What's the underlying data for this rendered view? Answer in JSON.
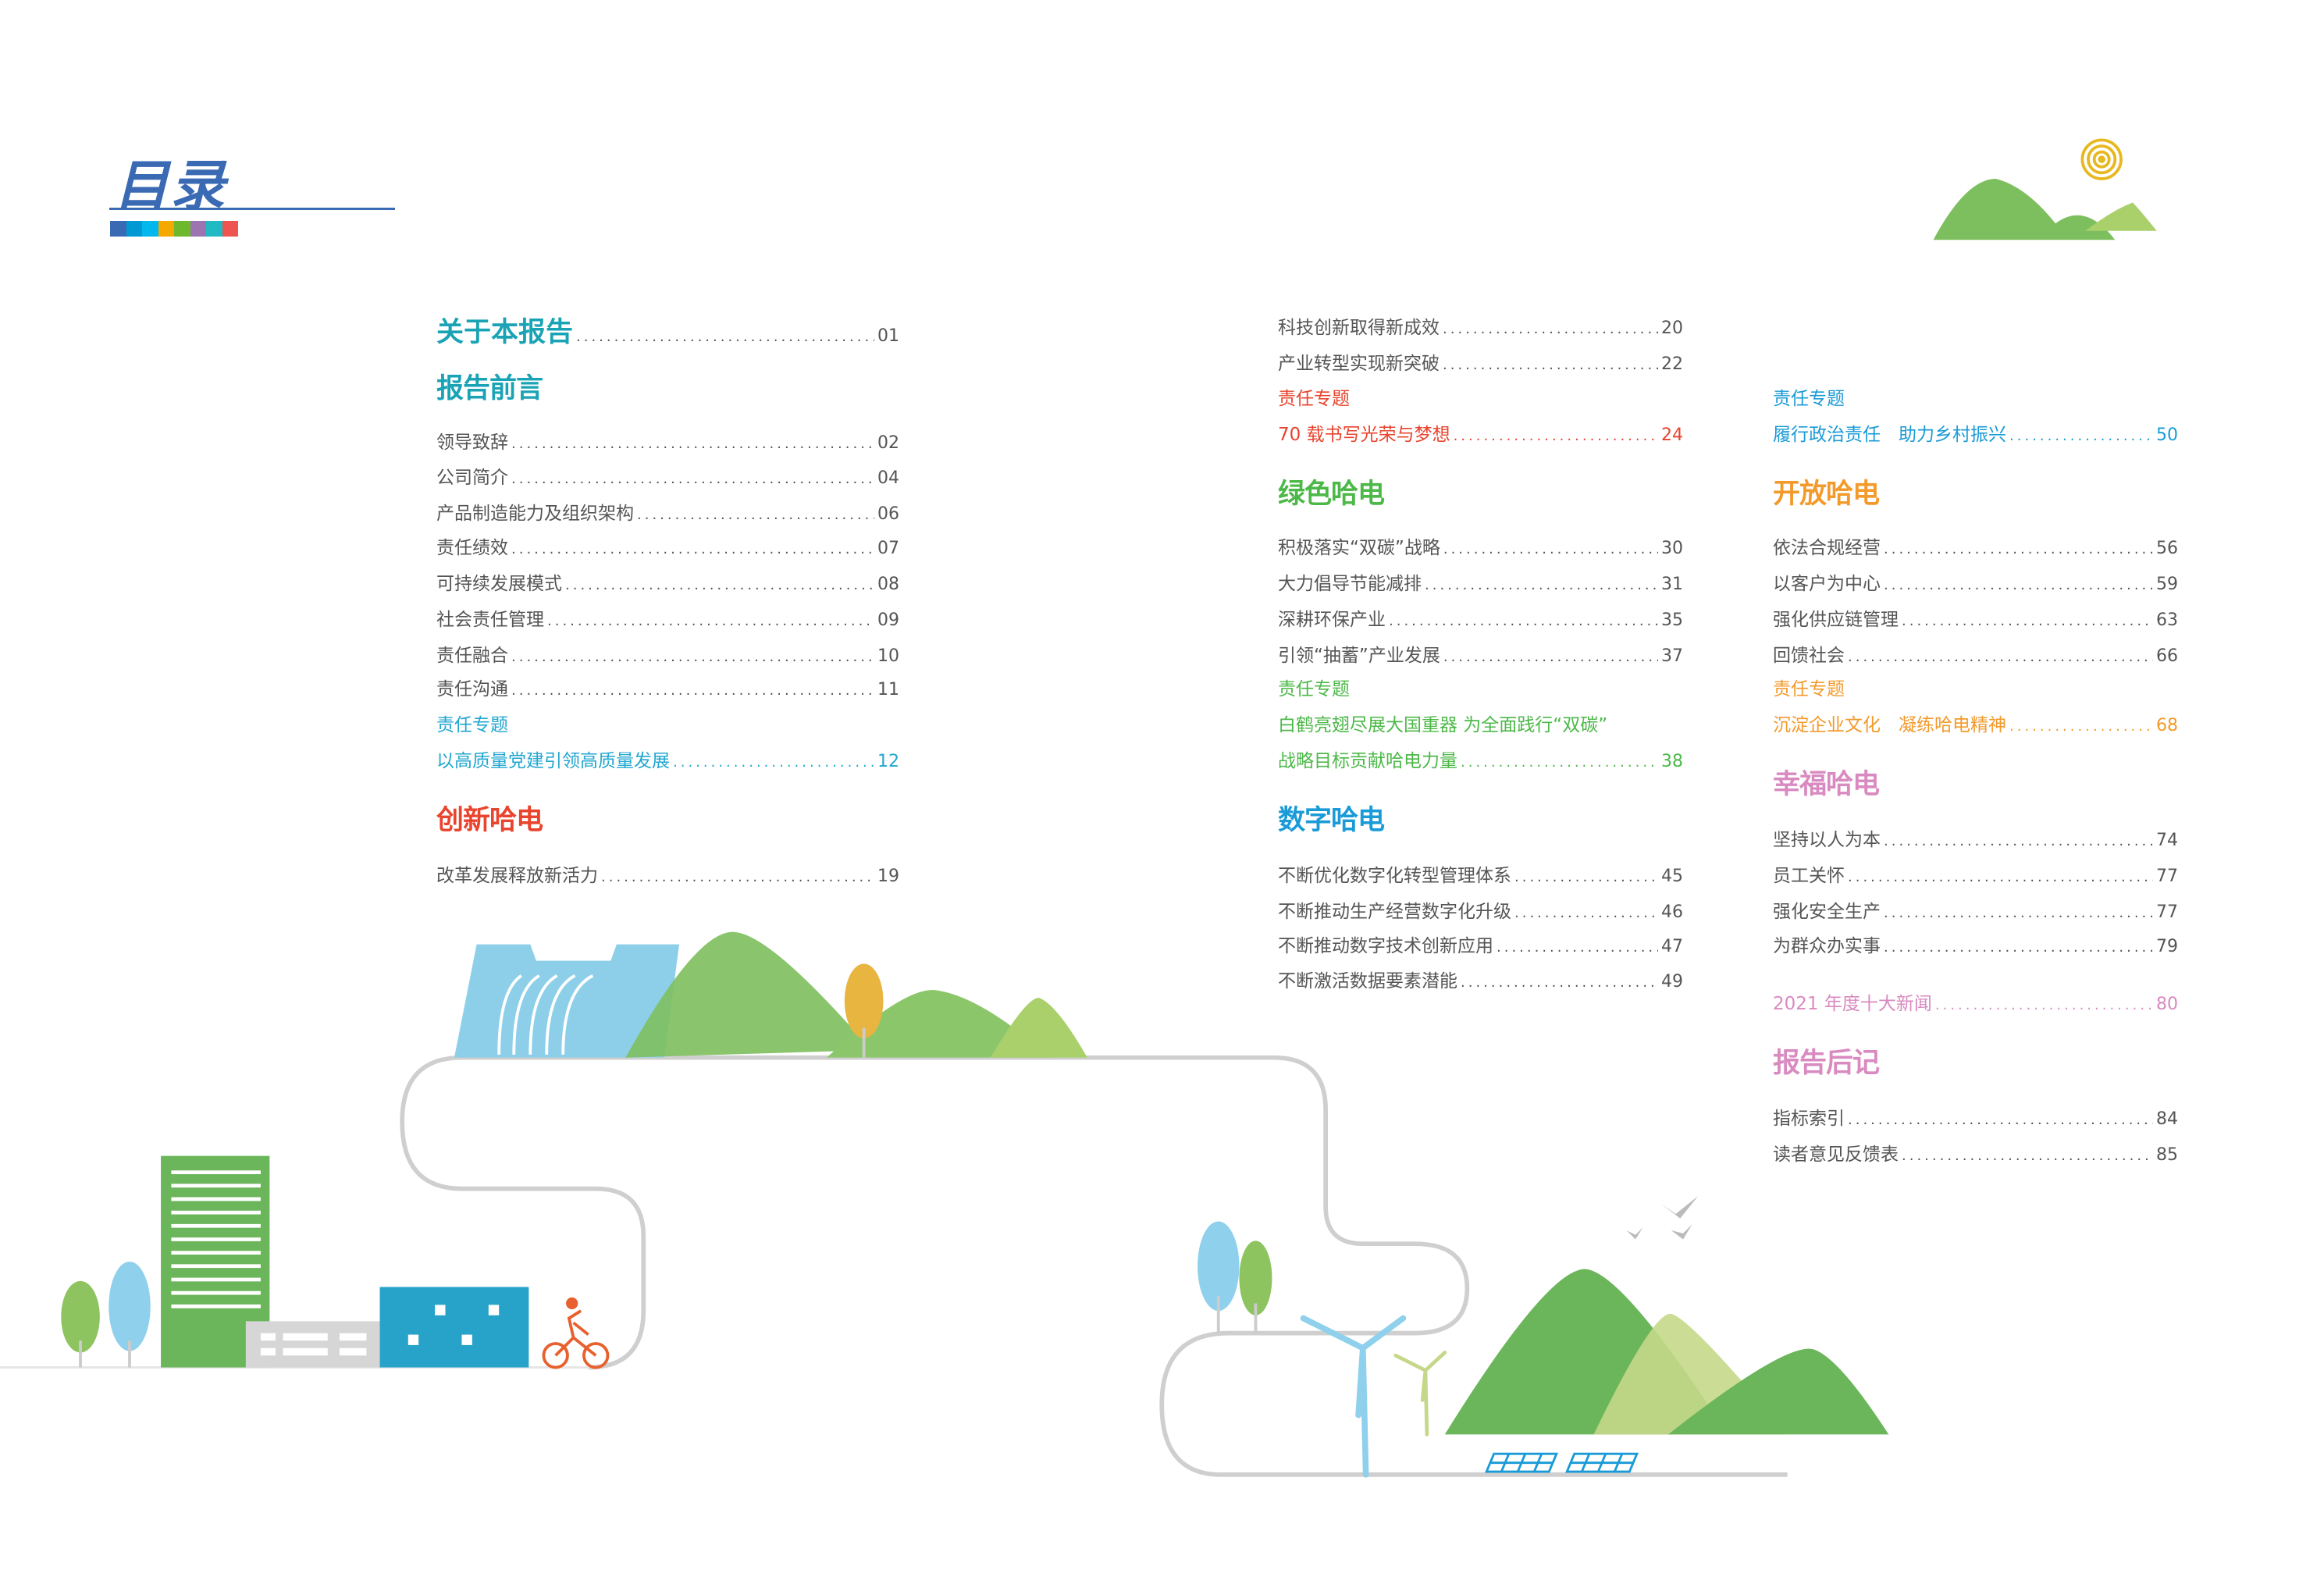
{
  "title": "目录",
  "colors": {
    "title": "#3a6ab3",
    "teal": "#1aa3b5",
    "red": "#e8442e",
    "green": "#4cb848",
    "blue": "#1a9bd7",
    "orange": "#f39a2b",
    "pink": "#d98ac0",
    "text": "#555555"
  },
  "colorbar": [
    "#3a6ab3",
    "#0099d4",
    "#00b8ee",
    "#f5a800",
    "#6db92b",
    "#9b74b1",
    "#20b9c4",
    "#ee5550"
  ],
  "col1": {
    "about": {
      "label": "关于本报告",
      "page": "01"
    },
    "preface": "报告前言",
    "preface_items": [
      {
        "label": "领导致辞",
        "page": "02"
      },
      {
        "label": "公司简介",
        "page": "04"
      },
      {
        "label": "产品制造能力及组织架构",
        "page": "06"
      },
      {
        "label": "责任绩效",
        "page": "07"
      },
      {
        "label": "可持续发展模式",
        "page": "08"
      },
      {
        "label": "社会责任管理",
        "page": "09"
      },
      {
        "label": "责任融合",
        "page": "10"
      },
      {
        "label": "责任沟通",
        "page": "11"
      }
    ],
    "topic_label": "责任专题",
    "topic": {
      "label": "以高质量党建引领高质量发展",
      "page": "12"
    },
    "innovation": "创新哈电",
    "innovation_items": [
      {
        "label": "改革发展释放新活力",
        "page": "19"
      }
    ]
  },
  "col2": {
    "innovation_items": [
      {
        "label": "科技创新取得新成效",
        "page": "20"
      },
      {
        "label": "产业转型实现新突破",
        "page": "22"
      }
    ],
    "innovation_topic_label": "责任专题",
    "innovation_topic": {
      "label": "70 载书写光荣与梦想",
      "page": "24"
    },
    "green": "绿色哈电",
    "green_items": [
      {
        "label": "积极落实“双碳”战略",
        "page": "30"
      },
      {
        "label": "大力倡导节能减排",
        "page": "31"
      },
      {
        "label": "深耕环保产业",
        "page": "35"
      },
      {
        "label": "引领“抽蓄”产业发展",
        "page": "37"
      }
    ],
    "green_topic_label": "责任专题",
    "green_topic_line1": "白鹤亮翅尽展大国重器 为全面践行“双碳”",
    "green_topic": {
      "label": "战略目标贡献哈电力量",
      "page": "38"
    },
    "digital": "数字哈电",
    "digital_items": [
      {
        "label": "不断优化数字化转型管理体系",
        "page": "45"
      },
      {
        "label": "不断推动生产经营数字化升级",
        "page": "46"
      },
      {
        "label": "不断推动数字技术创新应用",
        "page": "47"
      },
      {
        "label": "不断激活数据要素潜能",
        "page": "49"
      }
    ]
  },
  "col3": {
    "digital_topic_label": "责任专题",
    "digital_topic": {
      "label": "履行政治责任　助力乡村振兴",
      "page": "50"
    },
    "open": "开放哈电",
    "open_items": [
      {
        "label": "依法合规经营",
        "page": "56"
      },
      {
        "label": "以客户为中心",
        "page": "59"
      },
      {
        "label": "强化供应链管理",
        "page": "63"
      },
      {
        "label": "回馈社会",
        "page": "66"
      }
    ],
    "open_topic_label": "责任专题",
    "open_topic": {
      "label": "沉淀企业文化　凝练哈电精神",
      "page": "68"
    },
    "happy": "幸福哈电",
    "happy_items": [
      {
        "label": "坚持以人为本",
        "page": "74"
      },
      {
        "label": "员工关怀",
        "page": "77"
      },
      {
        "label": "强化安全生产",
        "page": "77"
      },
      {
        "label": "为群众办实事",
        "page": "79"
      }
    ],
    "news": {
      "label": "2021 年度十大新闻",
      "page": "80"
    },
    "afterword": "报告后记",
    "afterword_items": [
      {
        "label": "指标索引",
        "page": "84"
      },
      {
        "label": "读者意见反馈表",
        "page": "85"
      }
    ]
  }
}
